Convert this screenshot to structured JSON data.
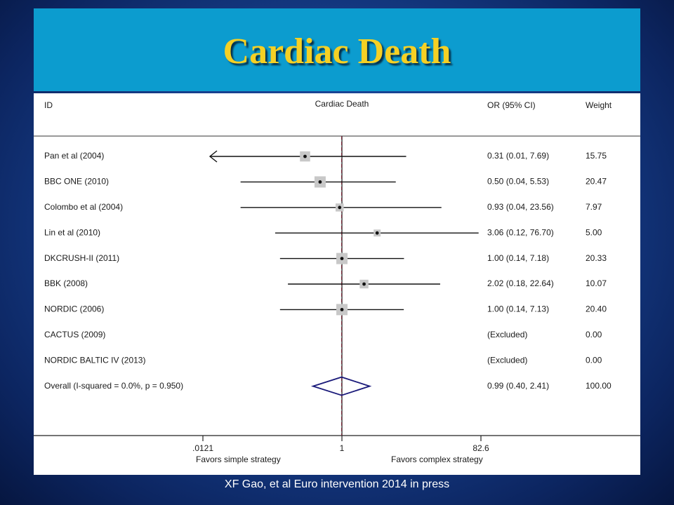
{
  "slide": {
    "title": "Cardiac Death",
    "citation": "XF Gao, et al Euro intervention 2014 in press"
  },
  "chart_data": {
    "type": "forest",
    "title": "Cardiac Death",
    "columns": {
      "id": "ID",
      "effect": "OR (95% CI)",
      "weight": "Weight"
    },
    "scale": "log",
    "xlim": [
      0.0121,
      82.6
    ],
    "xticks": [
      ".0121",
      "1",
      "82.6"
    ],
    "xlabel_left": "Favors simple strategy",
    "xlabel_right": "Favors complex strategy",
    "studies": [
      {
        "id": "Pan et al (2004)",
        "or": 0.31,
        "lo": 0.01,
        "hi": 7.69,
        "ci_text": "0.31 (0.01, 7.69)",
        "weight": 15.75,
        "weight_text": "15.75"
      },
      {
        "id": "BBC ONE (2010)",
        "or": 0.5,
        "lo": 0.04,
        "hi": 5.53,
        "ci_text": "0.50 (0.04, 5.53)",
        "weight": 20.47,
        "weight_text": "20.47"
      },
      {
        "id": "Colombo et al (2004)",
        "or": 0.93,
        "lo": 0.04,
        "hi": 23.56,
        "ci_text": "0.93 (0.04, 23.56)",
        "weight": 7.97,
        "weight_text": "7.97"
      },
      {
        "id": "Lin et al (2010)",
        "or": 3.06,
        "lo": 0.12,
        "hi": 76.7,
        "ci_text": "3.06 (0.12, 76.70)",
        "weight": 5.0,
        "weight_text": "5.00"
      },
      {
        "id": "DKCRUSH-II  (2011)",
        "or": 1.0,
        "lo": 0.14,
        "hi": 7.18,
        "ci_text": "1.00 (0.14, 7.18)",
        "weight": 20.33,
        "weight_text": "20.33"
      },
      {
        "id": "BBK (2008)",
        "or": 2.02,
        "lo": 0.18,
        "hi": 22.64,
        "ci_text": "2.02 (0.18, 22.64)",
        "weight": 10.07,
        "weight_text": "10.07"
      },
      {
        "id": "NORDIC (2006)",
        "or": 1.0,
        "lo": 0.14,
        "hi": 7.13,
        "ci_text": "1.00 (0.14, 7.13)",
        "weight": 20.4,
        "weight_text": "20.40"
      },
      {
        "id": "CACTUS (2009)",
        "or": null,
        "lo": null,
        "hi": null,
        "ci_text": "(Excluded)",
        "weight": 0,
        "weight_text": "0.00"
      },
      {
        "id": "NORDIC BALTIC IV (2013)",
        "or": null,
        "lo": null,
        "hi": null,
        "ci_text": "(Excluded)",
        "weight": 0,
        "weight_text": "0.00"
      }
    ],
    "overall": {
      "id": "Overall  (I-squared = 0.0%, p = 0.950)",
      "or": 0.99,
      "lo": 0.4,
      "hi": 2.41,
      "ci_text": "0.99 (0.40, 2.41)",
      "weight_text": "100.00"
    },
    "colors": {
      "diamond": "#1a1a7a",
      "reference_line": "#7a2a3a",
      "box": "#c8c8c8"
    }
  }
}
